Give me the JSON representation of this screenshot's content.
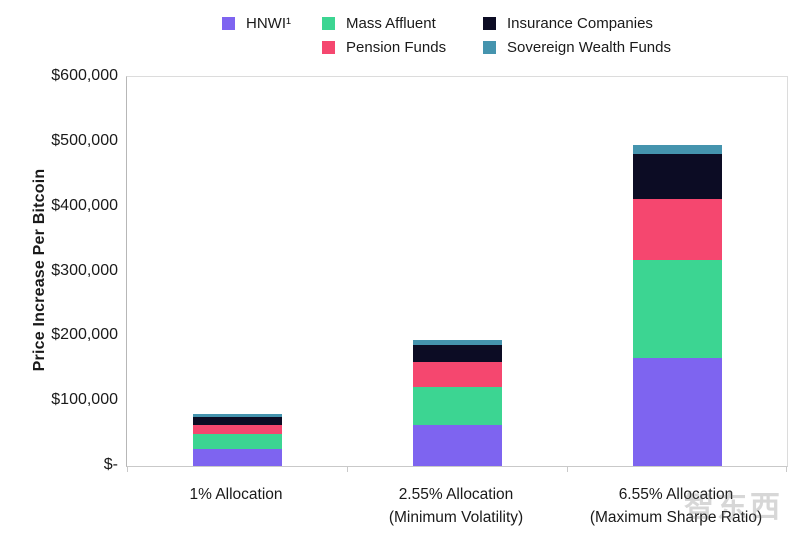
{
  "watermark": "智东西",
  "chart_data": {
    "type": "bar",
    "subtype": "stacked",
    "title": "",
    "ylabel": "Price Increase Per Bitcoin",
    "xlabel": "",
    "ylim": [
      0,
      600000
    ],
    "grid": false,
    "legend_position": "top",
    "y_tick_labels": [
      "$600,000",
      "$500,000",
      "$400,000",
      "$300,000",
      "$200,000",
      "$100,000",
      "$-"
    ],
    "categories": [
      {
        "line1": "1% Allocation",
        "line2": ""
      },
      {
        "line1": "2.55% Allocation",
        "line2": "(Minimum Volatility)"
      },
      {
        "line1": "6.55% Allocation",
        "line2": "(Maximum Sharpe Ratio)"
      }
    ],
    "series": [
      {
        "name": "HNWI¹",
        "color": "#7E64F0",
        "values": [
          26000,
          63000,
          167000
        ]
      },
      {
        "name": "Mass Affluent",
        "color": "#3CD592",
        "values": [
          23000,
          59000,
          151000
        ]
      },
      {
        "name": "Pension Funds",
        "color": "#F5476F",
        "values": [
          15000,
          39000,
          94000
        ]
      },
      {
        "name": "Insurance Companies",
        "color": "#0C0C24",
        "values": [
          11000,
          25000,
          69000
        ]
      },
      {
        "name": "Sovereign Wealth Funds",
        "color": "#4594AE",
        "values": [
          5000,
          8000,
          15000
        ]
      }
    ],
    "stack_totals": [
      80000,
      194000,
      496000
    ],
    "legend_columns": [
      [
        0
      ],
      [
        1,
        2
      ],
      [
        3,
        4
      ]
    ]
  }
}
